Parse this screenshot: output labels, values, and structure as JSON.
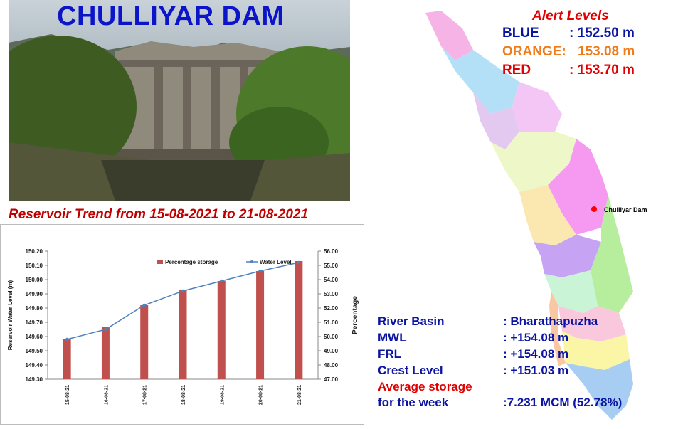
{
  "header": {
    "title": "CHULLIYAR DAM"
  },
  "trend_title": "Reservoir Trend from 15-08-2021 to 21-08-2021",
  "alerts": {
    "title": "Alert Levels",
    "levels": [
      {
        "name": "BLUE",
        "value": ": 152.50 m",
        "color": "#0b14a0"
      },
      {
        "name": "ORANGE:",
        "value": "153.08 m",
        "color": "#f07b1a"
      },
      {
        "name": "RED",
        "value": ": 153.70 m",
        "color": "#e00000"
      }
    ]
  },
  "map": {
    "marker_label": "Chulliyar Dam"
  },
  "info": {
    "river_basin_label": "River Basin",
    "river_basin_value": ": Bharathapuzha",
    "mwl_label": "MWL",
    "mwl_value": ": +154.08 m",
    "frl_label": "FRL",
    "frl_value": ": +154.08 m",
    "crest_label": "Crest Level",
    "crest_value": ": +151.03 m",
    "avg_label_1": "Average storage",
    "avg_label_2": "for the week",
    "avg_value": ":7.231 MCM (52.78%)"
  },
  "chart_data": {
    "type": "bar",
    "categories": [
      "15-08-21",
      "16-08-21",
      "17-08-21",
      "18-08-21",
      "19-08-21",
      "20-08-21",
      "21-08-21"
    ],
    "series": [
      {
        "name": "Percentage storage",
        "type": "bar",
        "axis": "right",
        "color": "#c0504d",
        "values": [
          49.8,
          50.7,
          52.2,
          53.3,
          53.9,
          54.6,
          55.3
        ]
      },
      {
        "name": "Water Level",
        "type": "line",
        "axis": "left",
        "color": "#4f81bd",
        "values": [
          149.58,
          149.65,
          149.82,
          149.92,
          149.99,
          150.06,
          150.12
        ]
      }
    ],
    "ylabel": "Reservoir Water Level (m)",
    "y2label": "Percentage",
    "ylim": [
      149.3,
      150.2
    ],
    "y2lim": [
      47.0,
      56.0
    ],
    "yticks": [
      "150.20",
      "150.10",
      "150.00",
      "149.90",
      "149.80",
      "149.70",
      "149.60",
      "149.50",
      "149.40",
      "149.30"
    ],
    "y2ticks": [
      "56.00",
      "55.00",
      "54.00",
      "53.00",
      "52.00",
      "51.00",
      "50.00",
      "49.00",
      "48.00",
      "47.00"
    ],
    "legend": "top"
  }
}
